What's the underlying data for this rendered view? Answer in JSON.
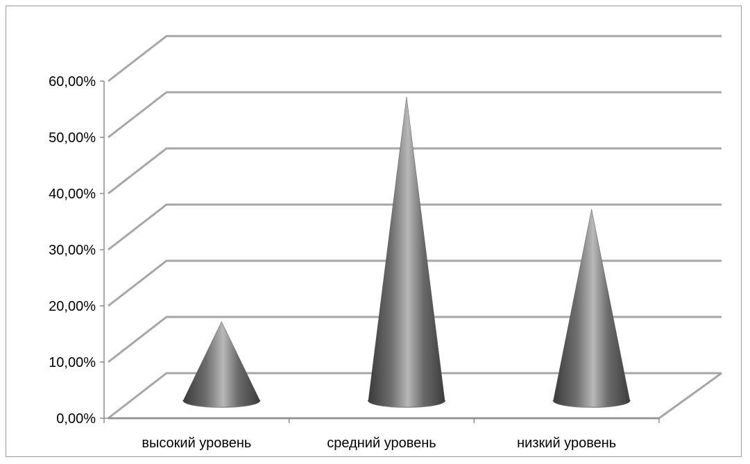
{
  "chart_data": {
    "type": "bar",
    "bar_shape": "cone-3d",
    "title": "",
    "xlabel": "",
    "ylabel": "",
    "categories": [
      "высокий уровень",
      "средний уровень",
      "низкий уровень"
    ],
    "values": [
      0.14,
      0.54,
      0.34
    ],
    "ylim": [
      0,
      0.6
    ],
    "yticks": [
      0,
      0.1,
      0.2,
      0.3,
      0.4,
      0.5,
      0.6
    ],
    "ytick_labels": [
      "0,00%",
      "10,00%",
      "20,00%",
      "30,00%",
      "40,00%",
      "50,00%",
      "60,00%"
    ],
    "grid": true,
    "legend": "none",
    "colors": {
      "cone": "#6f6f6f",
      "cone_highlight": "#bdbdbd",
      "grid": "#a6a6a6",
      "frame": "#9a9a9a"
    }
  }
}
